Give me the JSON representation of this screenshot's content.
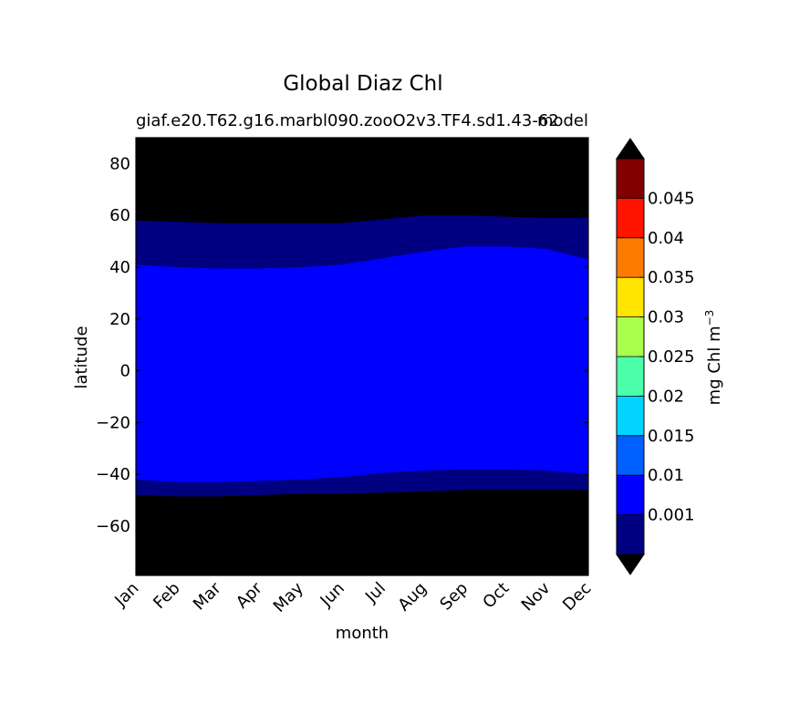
{
  "chart_data": {
    "type": "heatmap",
    "title": "Global Diaz Chl",
    "subtitle_left": "giaf.e20.T62.g16.marbl090.zooO2v3.TF4.sd1.43-62",
    "subtitle_right": "model",
    "xlabel": "month",
    "ylabel": "latitude",
    "x_categories": [
      "Jan",
      "Feb",
      "Mar",
      "Apr",
      "May",
      "Jun",
      "Jul",
      "Aug",
      "Sep",
      "Oct",
      "Nov",
      "Dec"
    ],
    "x": [
      1,
      2,
      3,
      4,
      5,
      6,
      7,
      8,
      9,
      10,
      11,
      12
    ],
    "ylim": [
      -79,
      90
    ],
    "yticks": [
      -60,
      -40,
      -20,
      0,
      20,
      40,
      60,
      80
    ],
    "ytick_labels": [
      "−60",
      "−40",
      "−20",
      "0",
      "20",
      "40",
      "60",
      "80"
    ],
    "contour_boundaries": {
      "north_zero": [
        58,
        57.5,
        57,
        57,
        57,
        57,
        58.5,
        60,
        60,
        59.5,
        59,
        59
      ],
      "north_low": [
        41,
        40,
        39.5,
        39.5,
        40,
        41,
        43.5,
        46,
        48,
        48,
        47,
        43
      ],
      "south_low": [
        -42,
        -43,
        -43,
        -42.5,
        -42,
        -41,
        -39.5,
        -38.5,
        -38,
        -38,
        -38.5,
        -40
      ],
      "south_zero": [
        -48,
        -48.5,
        -48.5,
        -48,
        -47.5,
        -47.5,
        -47,
        -46.5,
        -46,
        -46,
        -46,
        -46
      ]
    },
    "colorbar": {
      "label": "mg Chl m",
      "label_exponent": "−3",
      "levels": [
        0,
        0.001,
        0.005,
        0.01,
        0.015,
        0.02,
        0.025,
        0.03,
        0.035,
        0.04,
        0.045,
        0.05
      ],
      "tick_labels": [
        "0.001",
        "0.01",
        "0.015",
        "0.02",
        "0.025",
        "0.03",
        "0.035",
        "0.04",
        "0.045"
      ],
      "colors": [
        "#000080",
        "#0000ff",
        "#0060ff",
        "#00d4ff",
        "#4cffaa",
        "#aaff4c",
        "#ffe500",
        "#ff7b00",
        "#ff1400",
        "#800000"
      ],
      "under_color": "#000000",
      "over_color": "#000000"
    },
    "legend": "none",
    "grid": false
  }
}
